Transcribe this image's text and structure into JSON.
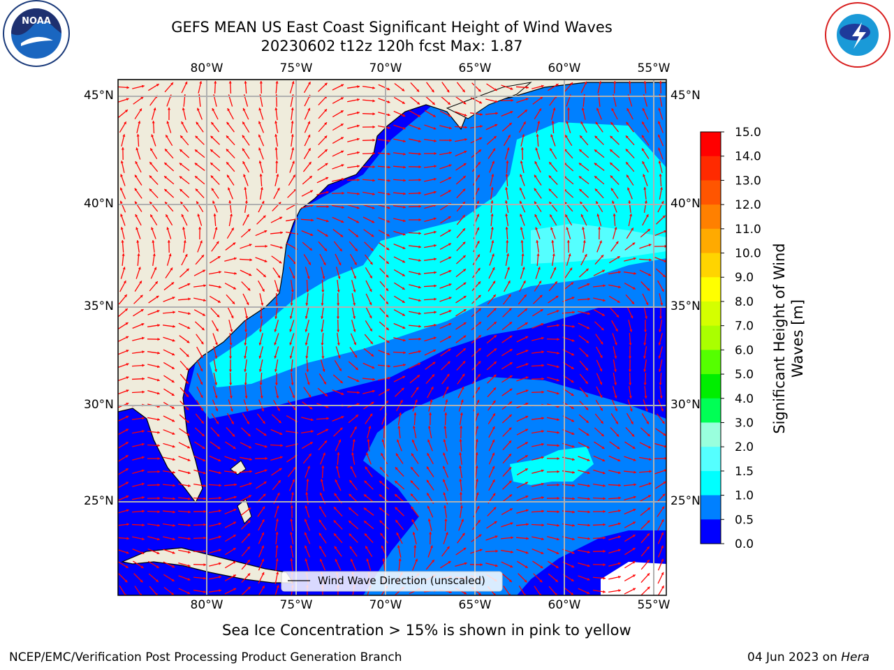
{
  "title": {
    "line1": "GEFS MEAN US East Coast Significant Height of Wind Waves",
    "line2": "20230602 t12z 120h fcst    Max: 1.87"
  },
  "axes": {
    "lon_labels": [
      "80°W",
      "75°W",
      "70°W",
      "65°W",
      "60°W",
      "55°W"
    ],
    "lat_labels": [
      "45°N",
      "40°N",
      "35°N",
      "30°N",
      "25°N"
    ]
  },
  "legend": {
    "label": "Wind Wave Direction (unscaled)"
  },
  "colorbar": {
    "label": "Significant Height of Wind Waves [m]",
    "label_lines": [
      "Significant Height of Wind",
      "Waves [m]"
    ],
    "ticks": [
      "15.0",
      "14.0",
      "13.0",
      "12.0",
      "11.0",
      "10.0",
      "9.0",
      "8.0",
      "7.0",
      "6.0",
      "5.0",
      "4.0",
      "3.0",
      "2.0",
      "1.5",
      "1.0",
      "0.5",
      "0.0"
    ],
    "colors": [
      "#ff0000",
      "#ff2a00",
      "#ff5500",
      "#ff8000",
      "#ffaa00",
      "#ffd400",
      "#ffff00",
      "#d4ff00",
      "#aaff00",
      "#55ff00",
      "#00ee00",
      "#00ff55",
      "#99ffdd",
      "#55ffff",
      "#00ffff",
      "#0080ff",
      "#0000ff"
    ]
  },
  "palette": {
    "land": "#efecdc",
    "deep": "#0000ff",
    "mid": "#0080ff",
    "shallow": "#00ffff",
    "light": "#55ffff",
    "arrow": "#ff0000"
  },
  "map_extent": {
    "lon": [
      -85,
      -54.3
    ],
    "lat": [
      20.2,
      46
    ]
  },
  "footer": {
    "ice_note": "Sea Ice Concentration > 15% is shown in pink to yellow",
    "credit": "NCEP/EMC/Verification Post Processing Product Generation Branch",
    "date": "04 Jun 2023 on ",
    "machine": "Hera"
  },
  "logos": {
    "left": "NOAA",
    "right": "NATIONAL WEATHER SERVICE"
  }
}
